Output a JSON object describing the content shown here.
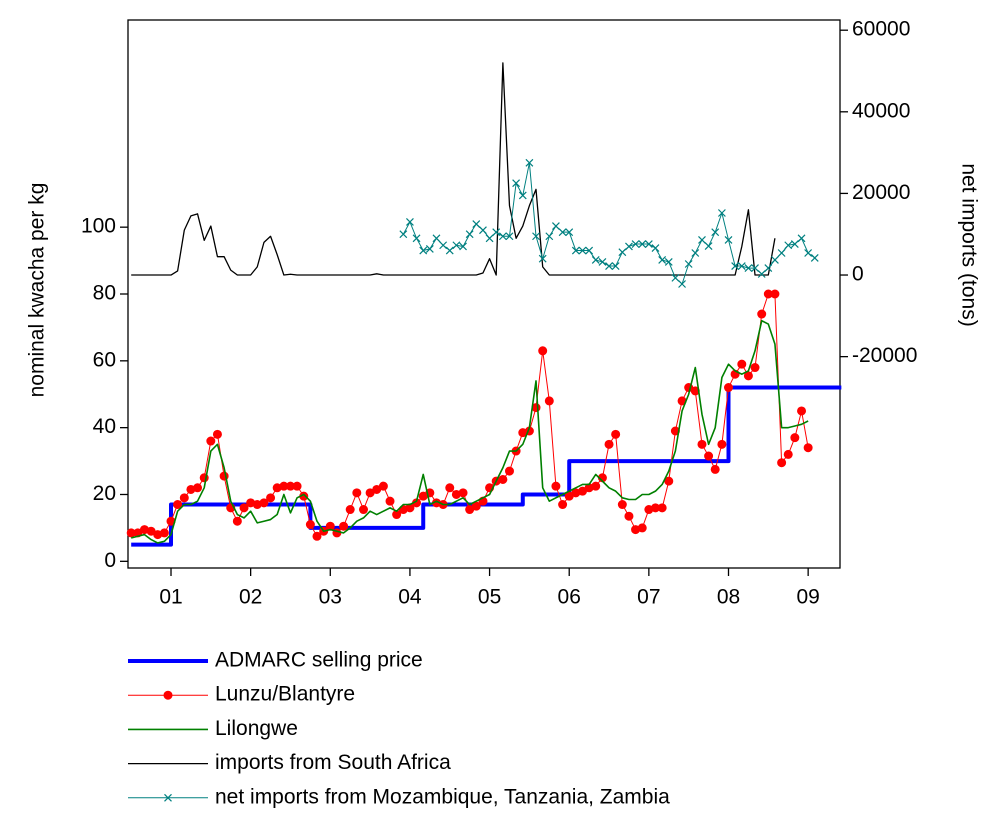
{
  "chart_data": {
    "type": "line",
    "ylabel": "nominal kwacha per kg",
    "y2label": "net imports (tons)",
    "x": [
      2001.0,
      2001.083,
      2001.167,
      2001.25,
      2001.333,
      2001.417,
      2001.5,
      2001.583,
      2001.667,
      2001.75,
      2001.833,
      2001.917,
      2002.0,
      2002.083,
      2002.167,
      2002.25,
      2002.333,
      2002.417,
      2002.5,
      2002.583,
      2002.667,
      2002.75,
      2002.833,
      2002.917,
      2003.0,
      2003.083,
      2003.167,
      2003.25,
      2003.333,
      2003.417,
      2003.5,
      2003.583,
      2003.667,
      2003.75,
      2003.833,
      2003.917,
      2004.0,
      2004.083,
      2004.167,
      2004.25,
      2004.333,
      2004.417,
      2004.5,
      2004.583,
      2004.667,
      2004.75,
      2004.833,
      2004.917,
      2005.0,
      2005.083,
      2005.167,
      2005.25,
      2005.333,
      2005.417,
      2005.5,
      2005.583,
      2005.667,
      2005.75,
      2005.833,
      2005.917,
      2006.0,
      2006.083,
      2006.167,
      2006.25,
      2006.333,
      2006.417,
      2006.5,
      2006.583,
      2006.667,
      2006.75,
      2006.833,
      2006.917,
      2007.0,
      2007.083,
      2007.167,
      2007.25,
      2007.333,
      2007.417,
      2007.5,
      2007.583,
      2007.667,
      2007.75,
      2007.833,
      2007.917,
      2008.0,
      2008.083,
      2008.167,
      2008.25,
      2008.333,
      2008.417,
      2008.5,
      2008.583,
      2008.667,
      2008.75,
      2008.833,
      2008.917,
      2009.0,
      2009.083,
      2009.167,
      2009.25,
      2009.333,
      2009.417,
      2009.5,
      2009.583,
      2009.667,
      2009.75,
      2009.833,
      2009.917
    ],
    "xlim": [
      2000.96,
      2009.9
    ],
    "xticks": [
      {
        "value": 2001.5,
        "label": "01"
      },
      {
        "value": 2002.5,
        "label": "02"
      },
      {
        "value": 2003.5,
        "label": "03"
      },
      {
        "value": 2004.5,
        "label": "04"
      },
      {
        "value": 2005.5,
        "label": "05"
      },
      {
        "value": 2006.5,
        "label": "06"
      },
      {
        "value": 2007.5,
        "label": "07"
      },
      {
        "value": 2008.5,
        "label": "08"
      },
      {
        "value": 2009.5,
        "label": "09"
      }
    ],
    "ylim": [
      -2,
      162
    ],
    "yticks": [
      0,
      20,
      40,
      60,
      80,
      100
    ],
    "y2lim": [
      -71800,
      62500
    ],
    "y2ticks": [
      -20000,
      0,
      20000,
      40000,
      60000
    ],
    "legend": "bottom",
    "series": [
      {
        "name": "ADMARC selling price",
        "color": "#0000ff",
        "line_width": 4,
        "drawstyle": "steps-post",
        "values": [
          5,
          5,
          5,
          5,
          5,
          5,
          17,
          17,
          17,
          17,
          17,
          17,
          17,
          17,
          17,
          17,
          17,
          17,
          17,
          17,
          17,
          17,
          17,
          17,
          17,
          17,
          17,
          10,
          10,
          10,
          10,
          10,
          10,
          10,
          10,
          10,
          10,
          10,
          10,
          10,
          10,
          10,
          10,
          10,
          17,
          17,
          17,
          17,
          17,
          17,
          17,
          17,
          17,
          17,
          17,
          17,
          17,
          17,
          17,
          20,
          20,
          20,
          20,
          20,
          20,
          20,
          30,
          30,
          30,
          30,
          30,
          30,
          30,
          30,
          30,
          30,
          30,
          30,
          30,
          30,
          30,
          30,
          30,
          30,
          30,
          30,
          30,
          30,
          30,
          30,
          52,
          52,
          52,
          52,
          52,
          52,
          52,
          52,
          52,
          52,
          52,
          52,
          52,
          52,
          52,
          52,
          52,
          52
        ]
      },
      {
        "name": "Lunzu/Blantyre",
        "color": "#ff0000",
        "line_width": 1,
        "marker": "circle",
        "values": [
          8.5,
          8.5,
          9.5,
          9,
          8,
          8.5,
          12,
          17,
          19,
          21.5,
          22,
          25,
          36,
          38,
          25.5,
          16,
          12,
          16,
          17.5,
          17,
          17.5,
          19,
          22,
          22.5,
          22.5,
          22.5,
          19.5,
          11,
          7.5,
          9,
          10.5,
          8.5,
          10.5,
          15.5,
          20.5,
          15.5,
          20.5,
          21.5,
          22.5,
          18,
          14,
          15.5,
          16,
          17.5,
          19.5,
          20.5,
          17.5,
          17,
          22,
          20,
          20.5,
          15.5,
          16.5,
          18,
          22,
          24,
          24.5,
          27,
          33,
          38.5,
          39,
          46,
          63,
          48,
          22.5,
          17,
          19.5,
          20.5,
          21,
          22,
          22.5,
          25,
          35,
          38,
          17,
          13.5,
          9.5,
          10,
          15.5,
          16,
          16,
          24,
          39,
          48,
          52,
          51,
          35,
          31.5,
          27.5,
          35,
          52,
          56,
          59,
          55.5,
          58,
          74,
          80,
          80,
          29.5,
          32,
          37,
          45,
          34,
          null,
          null,
          null,
          null,
          null
        ]
      },
      {
        "name": "Lilongwe",
        "color": "#008000",
        "line_width": 1.6,
        "values": [
          7,
          7.5,
          8,
          6.5,
          5.5,
          6,
          8,
          15,
          17,
          17,
          18,
          22,
          33,
          35,
          28,
          18,
          14,
          13,
          15,
          11.5,
          12,
          12.5,
          14,
          20,
          14.5,
          19,
          20,
          18,
          12,
          9,
          9.5,
          9,
          8.5,
          10,
          12,
          13,
          15,
          14,
          15,
          16,
          15,
          17,
          17,
          18,
          26,
          17,
          18,
          17,
          17,
          18,
          19,
          17,
          18,
          19,
          20,
          24,
          28,
          33,
          33,
          35,
          40,
          54,
          22,
          18,
          19,
          20,
          21,
          22,
          23,
          23,
          26,
          24,
          22,
          21,
          19,
          18.5,
          18.5,
          20,
          20,
          21,
          23,
          27,
          33,
          45,
          50,
          58,
          44,
          35,
          40,
          55,
          59,
          57,
          56,
          57,
          63,
          72,
          71,
          65,
          40,
          40,
          40.5,
          41,
          42,
          null,
          null,
          null,
          null,
          null
        ]
      },
      {
        "name": "imports from South Africa",
        "color": "#000000",
        "line_width": 1.3,
        "axis": "y2",
        "values": [
          0,
          0,
          0,
          0,
          0,
          0,
          0,
          1000,
          11000,
          14500,
          15000,
          8500,
          12000,
          4500,
          4500,
          1200,
          0,
          0,
          0,
          2000,
          8000,
          9500,
          5000,
          0,
          200,
          0,
          0,
          0,
          0,
          0,
          0,
          0,
          0,
          0,
          0,
          0,
          0,
          300,
          0,
          0,
          0,
          0,
          0,
          0,
          0,
          0,
          0,
          0,
          0,
          0,
          0,
          0,
          0,
          500,
          4000,
          0,
          52000,
          17000,
          9000,
          12000,
          17000,
          21000,
          2000,
          0,
          0,
          0,
          0,
          0,
          0,
          0,
          0,
          0,
          0,
          0,
          0,
          0,
          0,
          0,
          0,
          0,
          0,
          0,
          0,
          0,
          0,
          0,
          0,
          0,
          0,
          0,
          0,
          0,
          7000,
          16000,
          0,
          0,
          0,
          9000,
          null,
          null,
          null,
          null,
          null,
          null,
          null,
          null,
          null,
          null
        ]
      },
      {
        "name": "net imports from Mozambique, Tanzania, Zambia",
        "color": "#008080",
        "line_width": 1,
        "marker": "x",
        "axis": "y2",
        "values": [
          null,
          null,
          null,
          null,
          null,
          null,
          null,
          null,
          null,
          null,
          null,
          null,
          null,
          null,
          null,
          null,
          null,
          null,
          null,
          null,
          null,
          null,
          null,
          null,
          null,
          null,
          null,
          null,
          null,
          null,
          null,
          null,
          null,
          null,
          null,
          null,
          null,
          null,
          null,
          null,
          null,
          10000,
          13000,
          9000,
          6000,
          6400,
          9000,
          7300,
          6000,
          7300,
          7000,
          10000,
          12500,
          11000,
          9000,
          10500,
          9500,
          9500,
          22500,
          19500,
          27500,
          9500,
          4000,
          9500,
          12000,
          10500,
          10500,
          6000,
          6000,
          6000,
          3700,
          3200,
          2200,
          2200,
          5600,
          7000,
          7600,
          7600,
          7600,
          6600,
          3700,
          3200,
          -700,
          -2200,
          2700,
          5400,
          8600,
          7100,
          10500,
          15200,
          8600,
          2200,
          2200,
          1700,
          1700,
          250,
          1700,
          3700,
          5400,
          7300,
          7600,
          9000,
          5400,
          4200,
          null,
          null,
          null,
          null
        ]
      }
    ]
  }
}
